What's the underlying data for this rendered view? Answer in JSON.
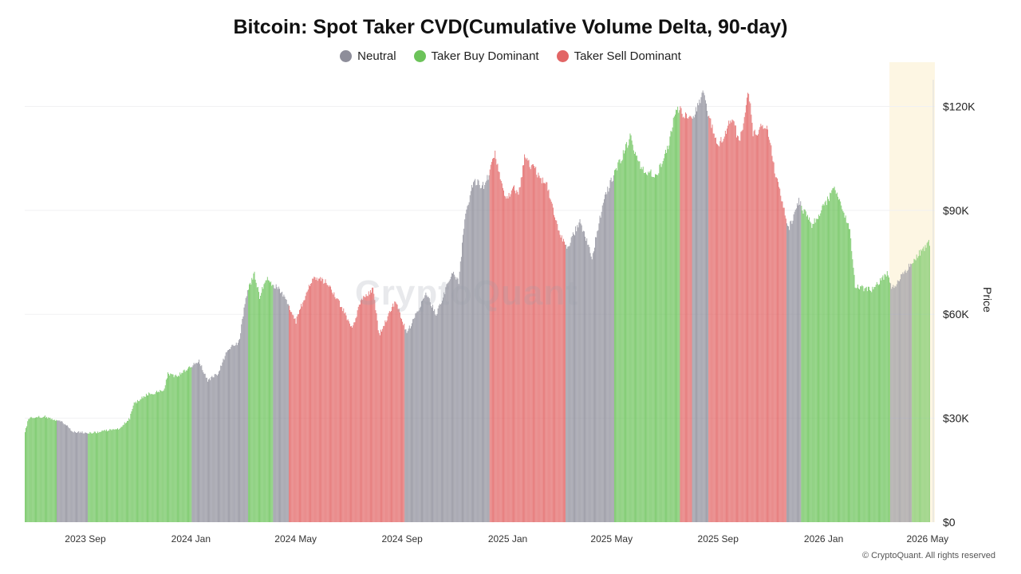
{
  "chart_data": {
    "type": "bar",
    "title": "Bitcoin: Spot Taker CVD(Cumulative Volume Delta, 90-day)",
    "ylabel": "Price",
    "ylim": [
      0,
      130000
    ],
    "y_ticks": [
      {
        "value": 0,
        "label": "$0"
      },
      {
        "value": 30000,
        "label": "$30K"
      },
      {
        "value": 60000,
        "label": "$60K"
      },
      {
        "value": 90000,
        "label": "$90K"
      },
      {
        "value": 120000,
        "label": "$120K"
      }
    ],
    "x_range": [
      "2023-06-23",
      "2026-05-03"
    ],
    "x_ticks": [
      {
        "date": "2023-09-01",
        "label": "2023 Sep"
      },
      {
        "date": "2024-01-01",
        "label": "2024 Jan"
      },
      {
        "date": "2024-05-01",
        "label": "2024 May"
      },
      {
        "date": "2024-09-01",
        "label": "2024 Sep"
      },
      {
        "date": "2025-01-01",
        "label": "2025 Jan"
      },
      {
        "date": "2025-05-01",
        "label": "2025 May"
      },
      {
        "date": "2025-09-01",
        "label": "2025 Sep"
      },
      {
        "date": "2026-01-01",
        "label": "2026 Jan"
      },
      {
        "date": "2026-05-01",
        "label": "2026 May"
      }
    ],
    "legend": [
      {
        "name": "Neutral",
        "color": "#8e8e9a"
      },
      {
        "name": "Taker Buy Dominant",
        "color": "#6cc35a"
      },
      {
        "name": "Taker Sell Dominant",
        "color": "#e26565"
      }
    ],
    "legend_position": "top-center",
    "grid": true,
    "highlight_period": [
      "2026-03-18",
      "2026-05-03"
    ],
    "price_points": [
      [
        "2023-06-23",
        26000
      ],
      [
        "2023-06-27",
        30000
      ],
      [
        "2023-07-15",
        30500
      ],
      [
        "2023-08-05",
        29000
      ],
      [
        "2023-08-18",
        26000
      ],
      [
        "2023-09-10",
        25800
      ],
      [
        "2023-09-25",
        26500
      ],
      [
        "2023-10-10",
        27000
      ],
      [
        "2023-10-22",
        30000
      ],
      [
        "2023-10-26",
        34000
      ],
      [
        "2023-11-10",
        36800
      ],
      [
        "2023-11-30",
        38000
      ],
      [
        "2023-12-05",
        43000
      ],
      [
        "2023-12-15",
        42000
      ],
      [
        "2024-01-10",
        46500
      ],
      [
        "2024-01-20",
        41000
      ],
      [
        "2024-02-01",
        43000
      ],
      [
        "2024-02-12",
        50000
      ],
      [
        "2024-02-25",
        52000
      ],
      [
        "2024-03-05",
        66000
      ],
      [
        "2024-03-14",
        72000
      ],
      [
        "2024-03-20",
        65000
      ],
      [
        "2024-03-27",
        70500
      ],
      [
        "2024-04-12",
        67000
      ],
      [
        "2024-04-20",
        64000
      ],
      [
        "2024-05-01",
        58000
      ],
      [
        "2024-05-08",
        63000
      ],
      [
        "2024-05-21",
        71000
      ],
      [
        "2024-06-07",
        69000
      ],
      [
        "2024-06-25",
        61000
      ],
      [
        "2024-07-05",
        56000
      ],
      [
        "2024-07-15",
        64000
      ],
      [
        "2024-07-29",
        67500
      ],
      [
        "2024-08-05",
        54000
      ],
      [
        "2024-08-24",
        64000
      ],
      [
        "2024-09-06",
        54500
      ],
      [
        "2024-09-28",
        66000
      ],
      [
        "2024-10-10",
        60000
      ],
      [
        "2024-10-29",
        72500
      ],
      [
        "2024-11-05",
        69000
      ],
      [
        "2024-11-12",
        88000
      ],
      [
        "2024-11-22",
        98500
      ],
      [
        "2024-12-05",
        97000
      ],
      [
        "2024-12-17",
        106000
      ],
      [
        "2024-12-30",
        92500
      ],
      [
        "2025-01-07",
        97000
      ],
      [
        "2025-01-13",
        94500
      ],
      [
        "2025-01-20",
        105000
      ],
      [
        "2025-01-31",
        102000
      ],
      [
        "2025-02-15",
        97000
      ],
      [
        "2025-02-28",
        84000
      ],
      [
        "2025-03-10",
        79000
      ],
      [
        "2025-03-25",
        87000
      ],
      [
        "2025-04-08",
        76500
      ],
      [
        "2025-04-22",
        93500
      ],
      [
        "2025-05-08",
        103000
      ],
      [
        "2025-05-22",
        111000
      ],
      [
        "2025-06-05",
        101500
      ],
      [
        "2025-06-22",
        100500
      ],
      [
        "2025-07-05",
        108000
      ],
      [
        "2025-07-14",
        120000
      ],
      [
        "2025-07-31",
        116000
      ],
      [
        "2025-08-14",
        123500
      ],
      [
        "2025-09-01",
        108500
      ],
      [
        "2025-09-18",
        117000
      ],
      [
        "2025-09-25",
        109000
      ],
      [
        "2025-10-06",
        124500
      ],
      [
        "2025-10-11",
        112000
      ],
      [
        "2025-10-27",
        115000
      ],
      [
        "2025-11-05",
        101500
      ],
      [
        "2025-11-21",
        84500
      ],
      [
        "2025-12-03",
        92500
      ],
      [
        "2025-12-18",
        85500
      ],
      [
        "2026-01-05",
        93000
      ],
      [
        "2026-01-14",
        96500
      ],
      [
        "2026-01-31",
        84000
      ],
      [
        "2026-02-06",
        68000
      ],
      [
        "2026-02-25",
        67000
      ],
      [
        "2026-03-16",
        72000
      ],
      [
        "2026-03-20",
        67000
      ],
      [
        "2026-04-15",
        76000
      ],
      [
        "2026-05-02",
        80500
      ]
    ],
    "color_segments": [
      {
        "start": "2023-06-23",
        "end": "2023-07-29",
        "regime": "Taker Buy Dominant"
      },
      {
        "start": "2023-07-30",
        "end": "2023-09-03",
        "regime": "Neutral"
      },
      {
        "start": "2023-09-04",
        "end": "2024-01-01",
        "regime": "Taker Buy Dominant"
      },
      {
        "start": "2024-01-02",
        "end": "2024-03-06",
        "regime": "Neutral"
      },
      {
        "start": "2024-03-07",
        "end": "2024-04-04",
        "regime": "Taker Buy Dominant"
      },
      {
        "start": "2024-04-05",
        "end": "2024-04-22",
        "regime": "Neutral"
      },
      {
        "start": "2024-04-23",
        "end": "2024-09-03",
        "regime": "Taker Sell Dominant"
      },
      {
        "start": "2024-09-04",
        "end": "2024-12-10",
        "regime": "Neutral"
      },
      {
        "start": "2024-12-11",
        "end": "2025-03-08",
        "regime": "Taker Sell Dominant"
      },
      {
        "start": "2025-03-09",
        "end": "2025-05-03",
        "regime": "Neutral"
      },
      {
        "start": "2025-05-04",
        "end": "2025-07-18",
        "regime": "Taker Buy Dominant"
      },
      {
        "start": "2025-07-19",
        "end": "2025-08-01",
        "regime": "Taker Sell Dominant"
      },
      {
        "start": "2025-08-02",
        "end": "2025-08-20",
        "regime": "Neutral"
      },
      {
        "start": "2025-08-21",
        "end": "2025-11-18",
        "regime": "Taker Sell Dominant"
      },
      {
        "start": "2025-11-19",
        "end": "2025-12-05",
        "regime": "Neutral"
      },
      {
        "start": "2025-12-06",
        "end": "2026-03-18",
        "regime": "Taker Buy Dominant"
      },
      {
        "start": "2026-03-19",
        "end": "2026-04-12",
        "regime": "Neutral"
      },
      {
        "start": "2026-04-13",
        "end": "2026-05-03",
        "regime": "Taker Buy Dominant"
      }
    ]
  },
  "watermark": "CryptoQuant",
  "copyright": "© CryptoQuant. All rights reserved"
}
